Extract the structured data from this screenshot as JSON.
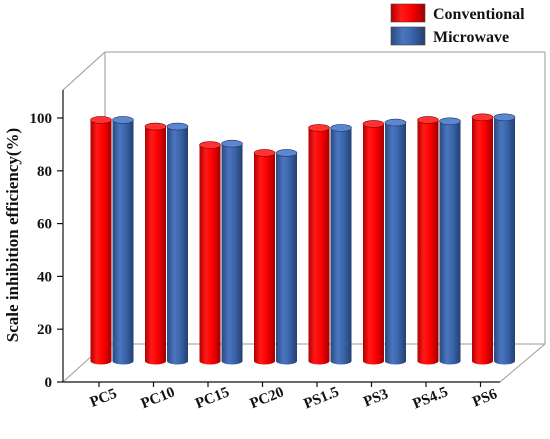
{
  "chart_data": {
    "type": "bar",
    "style": "3d-cylinder",
    "categories": [
      "PC5",
      "PC10",
      "PC15",
      "PC20",
      "PS1.5",
      "PS3",
      "PS4.5",
      "PS6"
    ],
    "series": [
      {
        "name": "Conventional",
        "color": "#ff0000",
        "values": [
          98.5,
          96,
          89,
          86,
          95.5,
          97,
          98.5,
          99.5
        ]
      },
      {
        "name": "Microwave",
        "color": "#3a62a8",
        "values": [
          98.5,
          96,
          89.5,
          86,
          95.5,
          97.5,
          98,
          99.5
        ]
      }
    ],
    "ylabel": "Scale inhibition efficiency(%)",
    "xlabel": "",
    "ylim": [
      0,
      110
    ],
    "yticks": [
      0,
      20,
      40,
      60,
      80,
      100
    ],
    "legend_position": "top-right",
    "grid": false
  }
}
